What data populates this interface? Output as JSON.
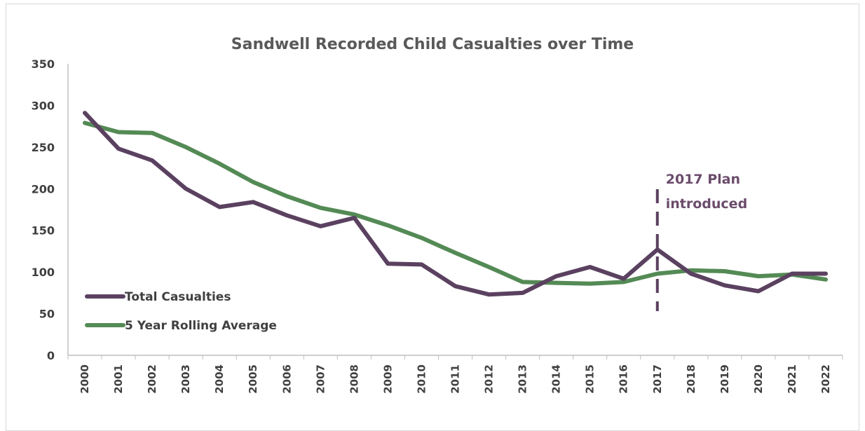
{
  "chart_data": {
    "type": "line",
    "title": "Sandwell Recorded Child Casualties over Time",
    "xlabel": "",
    "ylabel": "",
    "x": [
      "2000",
      "2001",
      "2002",
      "2003",
      "2004",
      "2005",
      "2006",
      "2007",
      "2008",
      "2009",
      "2010",
      "2011",
      "2012",
      "2013",
      "2014",
      "2015",
      "2016",
      "2017",
      "2018",
      "2019",
      "2020",
      "2021",
      "2022"
    ],
    "ylim": [
      0,
      350
    ],
    "yticks": [
      0,
      50,
      100,
      150,
      200,
      250,
      300,
      350
    ],
    "grid": false,
    "legend_placement": "bottom-left",
    "series": [
      {
        "name": "Total Casualties",
        "color": "#5b4160",
        "values": [
          291,
          248,
          234,
          200,
          178,
          184,
          168,
          155,
          165,
          110,
          109,
          83,
          73,
          75,
          95,
          106,
          92,
          127,
          98,
          84,
          77,
          98,
          98
        ]
      },
      {
        "name": "5 Year Rolling Average",
        "color": "#548a55",
        "values": [
          279,
          268,
          267,
          250,
          230,
          208,
          191,
          177,
          169,
          156,
          141,
          123,
          106,
          88,
          87,
          86,
          88,
          98,
          102,
          101,
          95,
          97,
          91
        ]
      }
    ],
    "annotations": [
      {
        "x": "2017",
        "label_line1": "2017 Plan",
        "label_line2": "introduced",
        "style": "dashed-vertical",
        "color": "#5b4160"
      }
    ]
  }
}
